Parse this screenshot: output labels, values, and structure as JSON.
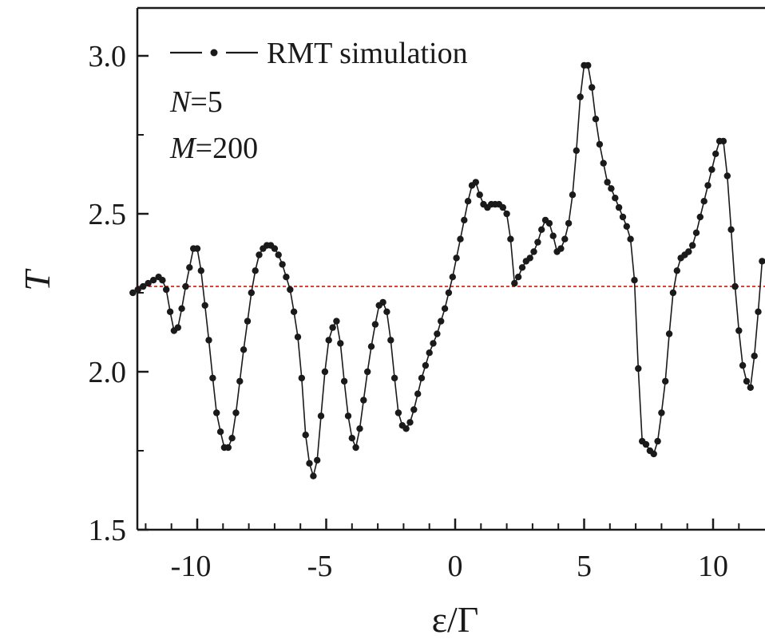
{
  "chart_data": {
    "type": "line",
    "title": "",
    "xlabel": "ε/Γ",
    "ylabel": "T",
    "xlim": [
      -12.5,
      11.9
    ],
    "ylim": [
      1.5,
      3.15
    ],
    "x_ticks": [
      -10,
      -5,
      0,
      5,
      10
    ],
    "x_tick_labels": [
      "-10",
      "-5",
      "0",
      "5",
      "10"
    ],
    "y_ticks": [
      1.5,
      2.0,
      2.5,
      3.0
    ],
    "y_tick_labels": [
      "1.5",
      "2.0",
      "2.5",
      "3.0"
    ],
    "grid": false,
    "legend": {
      "placement": "top-left",
      "entries": [
        "RMT simulation"
      ]
    },
    "annotations": [
      {
        "label": "N",
        "value": "=5"
      },
      {
        "label": "M",
        "value": "=200"
      }
    ],
    "reference_line": {
      "y": 2.27,
      "style": "dashed",
      "color": "#e0342a"
    },
    "series": [
      {
        "name": "RMT simulation",
        "color": "#1a1a1a",
        "x": [
          -12.5,
          -12.3,
          -12.1,
          -11.9,
          -11.7,
          -11.5,
          -11.35,
          -11.2,
          -11.05,
          -10.9,
          -10.75,
          -10.6,
          -10.45,
          -10.3,
          -10.15,
          -10.0,
          -9.85,
          -9.7,
          -9.55,
          -9.4,
          -9.25,
          -9.1,
          -8.95,
          -8.8,
          -8.65,
          -8.5,
          -8.35,
          -8.2,
          -8.05,
          -7.9,
          -7.75,
          -7.6,
          -7.45,
          -7.3,
          -7.15,
          -7.0,
          -6.85,
          -6.7,
          -6.55,
          -6.4,
          -6.25,
          -6.1,
          -5.95,
          -5.8,
          -5.65,
          -5.5,
          -5.35,
          -5.2,
          -5.05,
          -4.9,
          -4.75,
          -4.6,
          -4.45,
          -4.3,
          -4.15,
          -4.0,
          -3.85,
          -3.7,
          -3.55,
          -3.4,
          -3.25,
          -3.1,
          -2.95,
          -2.8,
          -2.65,
          -2.5,
          -2.35,
          -2.2,
          -2.05,
          -1.9,
          -1.75,
          -1.6,
          -1.45,
          -1.3,
          -1.15,
          -1.0,
          -0.85,
          -0.7,
          -0.55,
          -0.4,
          -0.25,
          -0.1,
          0.05,
          0.2,
          0.35,
          0.5,
          0.65,
          0.8,
          0.95,
          1.1,
          1.25,
          1.4,
          1.55,
          1.7,
          1.85,
          2.0,
          2.15,
          2.3,
          2.45,
          2.6,
          2.75,
          2.9,
          3.05,
          3.2,
          3.35,
          3.5,
          3.65,
          3.8,
          3.95,
          4.1,
          4.25,
          4.4,
          4.55,
          4.7,
          4.85,
          5.0,
          5.15,
          5.3,
          5.45,
          5.6,
          5.75,
          5.9,
          6.05,
          6.2,
          6.35,
          6.5,
          6.65,
          6.8,
          6.95,
          7.1,
          7.25,
          7.4,
          7.55,
          7.7,
          7.85,
          8.0,
          8.15,
          8.3,
          8.45,
          8.6,
          8.75,
          8.9,
          9.05,
          9.2,
          9.35,
          9.5,
          9.65,
          9.8,
          9.95,
          10.1,
          10.25,
          10.4,
          10.55,
          10.7,
          10.85,
          11.0,
          11.15,
          11.3,
          11.45,
          11.6,
          11.75,
          11.9
        ],
        "y": [
          2.25,
          2.26,
          2.27,
          2.28,
          2.29,
          2.3,
          2.29,
          2.26,
          2.19,
          2.13,
          2.14,
          2.2,
          2.27,
          2.33,
          2.39,
          2.39,
          2.32,
          2.21,
          2.1,
          1.98,
          1.87,
          1.81,
          1.76,
          1.76,
          1.79,
          1.87,
          1.97,
          2.07,
          2.16,
          2.25,
          2.32,
          2.37,
          2.39,
          2.4,
          2.4,
          2.39,
          2.37,
          2.34,
          2.3,
          2.26,
          2.19,
          2.11,
          1.98,
          1.8,
          1.71,
          1.67,
          1.72,
          1.86,
          2.0,
          2.1,
          2.14,
          2.16,
          2.09,
          1.97,
          1.86,
          1.79,
          1.76,
          1.82,
          1.91,
          2.0,
          2.08,
          2.15,
          2.21,
          2.22,
          2.19,
          2.1,
          1.98,
          1.87,
          1.83,
          1.82,
          1.84,
          1.88,
          1.93,
          1.98,
          2.02,
          2.06,
          2.09,
          2.12,
          2.16,
          2.2,
          2.25,
          2.3,
          2.36,
          2.42,
          2.48,
          2.54,
          2.59,
          2.6,
          2.56,
          2.53,
          2.52,
          2.53,
          2.53,
          2.53,
          2.52,
          2.5,
          2.42,
          2.28,
          2.3,
          2.33,
          2.35,
          2.36,
          2.38,
          2.41,
          2.45,
          2.48,
          2.47,
          2.43,
          2.38,
          2.39,
          2.42,
          2.47,
          2.56,
          2.7,
          2.87,
          2.97,
          2.97,
          2.9,
          2.8,
          2.72,
          2.66,
          2.6,
          2.58,
          2.55,
          2.52,
          2.49,
          2.46,
          2.42,
          2.29,
          2.01,
          1.78,
          1.77,
          1.75,
          1.74,
          1.78,
          1.87,
          1.97,
          2.12,
          2.25,
          2.32,
          2.36,
          2.37,
          2.38,
          2.4,
          2.44,
          2.49,
          2.54,
          2.59,
          2.64,
          2.69,
          2.73,
          2.73,
          2.62,
          2.45,
          2.27,
          2.13,
          2.02,
          1.97,
          1.95,
          2.05,
          2.19,
          2.35
        ]
      }
    ]
  }
}
